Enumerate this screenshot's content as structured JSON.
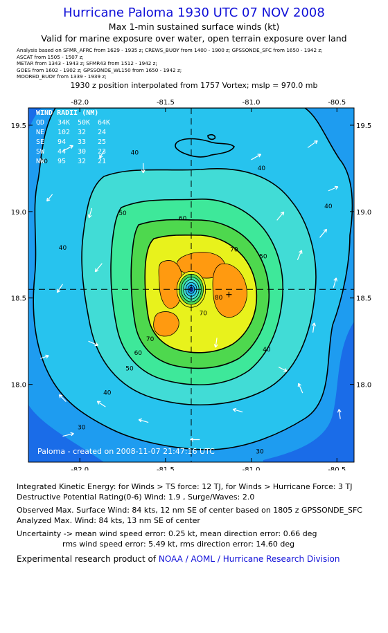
{
  "header": {
    "title": "Hurricane Paloma 1930 UTC 07 NOV 2008",
    "subtitle1": "Max 1-min sustained surface winds (kt)",
    "subtitle2": "Valid for marine exposure over water, open terrain exposure over land",
    "analysis_lines": [
      "Analysis based on  SFMR_AFRC from 1629 - 1935 z;  CREWS_BUOY from 1400 - 1900 z;  GPSSONDE_SFC from 1650 - 1942 z;",
      "ASCAT from 1505 - 1507 z;",
      "METAR from 1343 - 1943 z;  SFMR43 from 1512 - 1942 z;",
      "GOES from 1602 - 1902 z;  GPSSONDE_WL150 from 1650 - 1942 z;",
      "MOORED_BUOY from 1339 - 1939 z;"
    ],
    "position_note": "1930 z position interpolated from 1757 Vortex; mslp = 970.0 mb"
  },
  "wind_radii": {
    "title": "WIND RADII (NM)",
    "columns": [
      "QD",
      "34K",
      "50K",
      "64K"
    ],
    "rows": [
      [
        "NE",
        "102",
        "32",
        "24"
      ],
      [
        "SE",
        "94",
        "33",
        "25"
      ],
      [
        "SW",
        "44",
        "30",
        "23"
      ],
      [
        "NW",
        "95",
        "32",
        "21"
      ]
    ]
  },
  "footer_credit": "Paloma - created on 2008-11-07 21:47:16 UTC",
  "chart_data": {
    "type": "heatmap",
    "title": "Hurricane Paloma 1930 UTC 07 NOV 2008",
    "xlabel": "",
    "ylabel": "",
    "xlim": [
      -82.3,
      -80.4
    ],
    "ylim": [
      17.55,
      19.6
    ],
    "xticks": [
      -82.0,
      -81.5,
      -81.0,
      -80.5
    ],
    "yticks": [
      18.0,
      18.5,
      19.0,
      19.5
    ],
    "xtick_labels": [
      "-82.0",
      "-81.5",
      "-81.0",
      "-80.5"
    ],
    "ytick_labels": [
      "18.0",
      "18.5",
      "19.0",
      "19.5"
    ],
    "center": {
      "lon": -81.35,
      "lat": 18.55
    },
    "max_wind_location": {
      "lon": -81.13,
      "lat": 18.52
    },
    "contour_levels_kt": [
      10,
      20,
      30,
      40,
      50,
      60,
      70,
      80
    ],
    "contour_labels": [
      {
        "text": "30",
        "lon": -82.21,
        "lat": 19.28
      },
      {
        "text": "40",
        "lon": -81.68,
        "lat": 19.33
      },
      {
        "text": "40",
        "lon": -80.94,
        "lat": 19.24
      },
      {
        "text": "40",
        "lon": -80.55,
        "lat": 19.02
      },
      {
        "text": "40",
        "lon": -82.1,
        "lat": 18.78
      },
      {
        "text": "50",
        "lon": -81.75,
        "lat": 18.98
      },
      {
        "text": "60",
        "lon": -81.4,
        "lat": 18.95
      },
      {
        "text": "70",
        "lon": -81.1,
        "lat": 18.77
      },
      {
        "text": "50",
        "lon": -80.93,
        "lat": 18.73
      },
      {
        "text": "80",
        "lon": -81.19,
        "lat": 18.49
      },
      {
        "text": "70",
        "lon": -81.28,
        "lat": 18.4
      },
      {
        "text": "70",
        "lon": -81.59,
        "lat": 18.25
      },
      {
        "text": "60",
        "lon": -81.66,
        "lat": 18.17
      },
      {
        "text": "50",
        "lon": -81.71,
        "lat": 18.08
      },
      {
        "text": "40",
        "lon": -81.84,
        "lat": 17.94
      },
      {
        "text": "40",
        "lon": -80.91,
        "lat": 18.19
      },
      {
        "text": "30",
        "lon": -81.99,
        "lat": 17.74
      },
      {
        "text": "30",
        "lon": -80.95,
        "lat": 17.6
      }
    ],
    "colors": {
      "lt20": "#1a6ce8",
      "20_30": "#1e9cf0",
      "30_40": "#27c3ee",
      "40_50": "#41dcd6",
      "50_60": "#3ee89a",
      "60_70": "#4ed84e",
      "70_80": "#e8f21c",
      "80_90": "#ff9a10",
      "center": "#1a3fcf"
    }
  },
  "stats": {
    "ike": "Integrated Kinetic Energy:  for Winds > TS force: 12 TJ,  for Winds > Hurricane Force: 3 TJ",
    "dpr": "Destructive Potential Rating(0-6)   Wind: 1.9 , Surge/Waves: 2.0",
    "observed_max": "Observed Max. Surface Wind: 84 kts, 12 nm SE of center based on 1805 z GPSSONDE_SFC",
    "analyzed_max": "Analyzed Max. Wind: 84 kts, 13 nm SE of center",
    "uncertainty1": "Uncertainty -> mean wind speed error: 0.25 kt,   mean direction error: 0.66 deg",
    "uncertainty2": "rms wind speed error: 5.49 kt,   rms direction error: 14.60 deg",
    "credit_prefix": "Experimental research product of ",
    "credit_org": "NOAA / AOML / Hurricane Research Division"
  }
}
